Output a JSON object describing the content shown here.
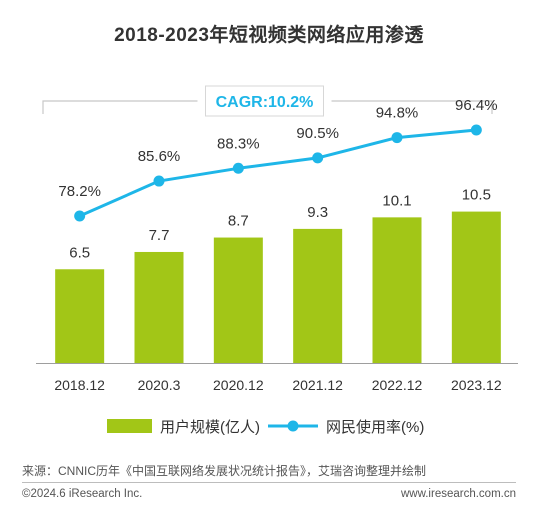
{
  "chart_data": {
    "type": "bar",
    "title": "2018-2023年短视频类网络应用渗透",
    "categories": [
      "2018.12",
      "2020.3",
      "2020.12",
      "2021.12",
      "2022.12",
      "2023.12"
    ],
    "series": [
      {
        "name": "用户规模(亿人)",
        "type": "bar",
        "values": [
          6.5,
          7.7,
          8.7,
          9.3,
          10.1,
          10.5
        ],
        "labels": [
          "6.5",
          "7.7",
          "8.7",
          "9.3",
          "10.1",
          "10.5"
        ],
        "color": "#a2c617"
      },
      {
        "name": "网民使用率(%)",
        "type": "line",
        "values": [
          78.2,
          85.6,
          88.3,
          90.5,
          94.8,
          96.4
        ],
        "labels": [
          "78.2%",
          "85.6%",
          "88.3%",
          "90.5%",
          "94.8%",
          "96.4%"
        ],
        "color": "#1eb6e8"
      }
    ],
    "annotation": "CAGR:10.2%",
    "annotation_color": "#1eb6e8",
    "legend_position": "bottom",
    "grid": false
  },
  "footer": {
    "source": "来源：CNNIC历年《中国互联网络发展状况统计报告》，艾瑞咨询整理并绘制",
    "copyright": "©2024.6 iResearch Inc.",
    "website": "www.iresearch.com.cn"
  }
}
